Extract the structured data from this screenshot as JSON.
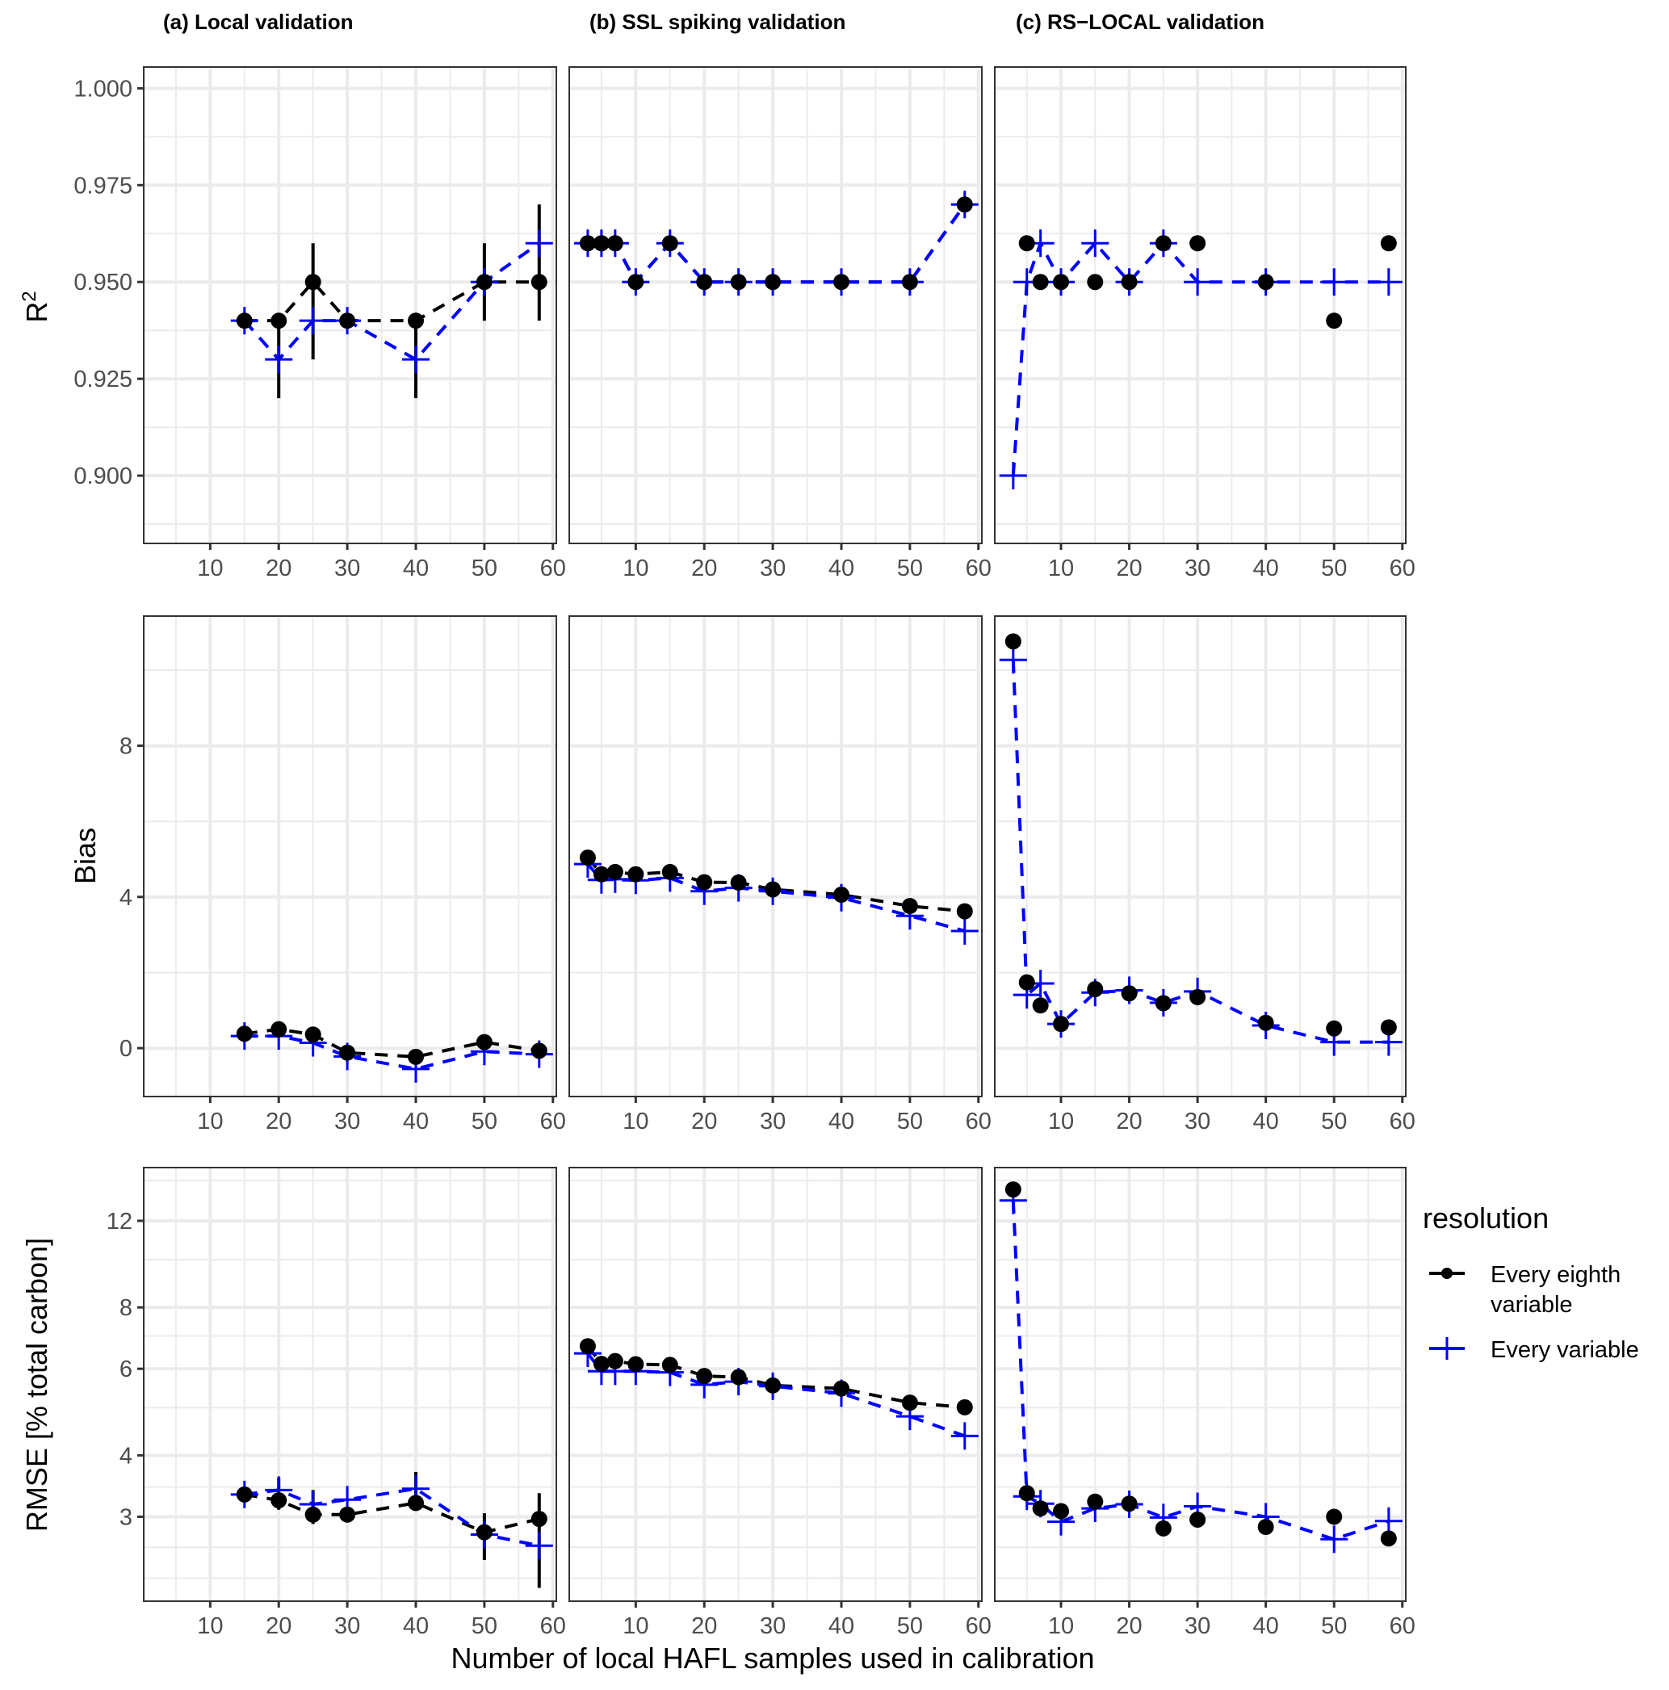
{
  "chart_data": {
    "type": "line",
    "facet_titles": [
      "(a) Local validation",
      "(b) SSL spiking validation",
      "(c) RS−LOCAL validation"
    ],
    "xlabel": "Number of local HAFL samples used in calibration",
    "x_ticks": [
      10,
      20,
      30,
      40,
      50,
      60
    ],
    "xlim": [
      0.3,
      60.5
    ],
    "legend": {
      "title": "resolution",
      "position": "right",
      "entries": [
        {
          "label_lines": [
            "Every eighth",
            "variable"
          ],
          "color": "#000000",
          "shape": "circle",
          "linetype": "dashed"
        },
        {
          "label_lines": [
            "Every variable"
          ],
          "color": "#0000ff",
          "shape": "plus",
          "linetype": "dashed"
        }
      ]
    },
    "rows": [
      {
        "metric": "R2",
        "ylabel": "R",
        "ylabel_superscript": "2",
        "scale": "linear",
        "ylim": [
          0.8825,
          1.0055
        ],
        "y_ticks": [
          0.9,
          0.925,
          0.95,
          0.975,
          1.0
        ],
        "y_tick_labels": [
          "0.900",
          "0.925",
          "0.950",
          "0.975",
          "1.000"
        ],
        "panels": [
          {
            "series": [
              {
                "name": "Every eighth variable",
                "x": [
                  15,
                  20,
                  25,
                  30,
                  40,
                  50,
                  58
                ],
                "y": [
                  0.94,
                  0.94,
                  0.95,
                  0.94,
                  0.94,
                  0.95,
                  0.95
                ],
                "err_low": [
                  0.94,
                  0.92,
                  0.93,
                  0.94,
                  0.92,
                  0.94,
                  0.94
                ],
                "err_high": [
                  0.94,
                  0.94,
                  0.96,
                  0.94,
                  0.94,
                  0.96,
                  0.97
                ]
              },
              {
                "name": "Every variable",
                "x": [
                  15,
                  20,
                  25,
                  30,
                  40,
                  50,
                  58
                ],
                "y": [
                  0.94,
                  0.93,
                  0.94,
                  0.94,
                  0.93,
                  0.95,
                  0.96
                ]
              }
            ]
          },
          {
            "series": [
              {
                "name": "Every eighth variable",
                "x": [
                  3,
                  5,
                  7,
                  10,
                  15,
                  20,
                  25,
                  30,
                  40,
                  50,
                  58
                ],
                "y": [
                  0.96,
                  0.96,
                  0.96,
                  0.95,
                  0.96,
                  0.95,
                  0.95,
                  0.95,
                  0.95,
                  0.95,
                  0.97
                ]
              },
              {
                "name": "Every variable",
                "x": [
                  3,
                  5,
                  7,
                  10,
                  15,
                  20,
                  25,
                  30,
                  40,
                  50,
                  58
                ],
                "y": [
                  0.96,
                  0.96,
                  0.96,
                  0.95,
                  0.96,
                  0.95,
                  0.95,
                  0.95,
                  0.95,
                  0.95,
                  0.97
                ]
              }
            ]
          },
          {
            "series": [
              {
                "name": "Every eighth variable",
                "x": [
                  5,
                  7,
                  10,
                  15,
                  20,
                  25,
                  30,
                  40,
                  50,
                  58
                ],
                "y": [
                  0.96,
                  0.95,
                  0.95,
                  0.95,
                  0.95,
                  0.96,
                  0.96,
                  0.95,
                  0.94,
                  0.96
                ],
                "no_line": true
              },
              {
                "name": "Every variable",
                "x": [
                  3,
                  5,
                  7,
                  10,
                  15,
                  20,
                  25,
                  30,
                  40,
                  50,
                  58
                ],
                "y": [
                  0.9,
                  0.95,
                  0.96,
                  0.95,
                  0.96,
                  0.95,
                  0.96,
                  0.95,
                  0.95,
                  0.95,
                  0.95
                ]
              }
            ]
          }
        ]
      },
      {
        "metric": "Bias",
        "ylabel": "Bias",
        "scale": "linear",
        "ylim": [
          -1.28,
          11.43
        ],
        "y_ticks": [
          0,
          4,
          8
        ],
        "y_tick_labels": [
          "0",
          "4",
          "8"
        ],
        "panels": [
          {
            "series": [
              {
                "name": "Every eighth variable",
                "x": [
                  15,
                  20,
                  25,
                  30,
                  40,
                  50,
                  58
                ],
                "y": [
                  0.38,
                  0.5,
                  0.36,
                  -0.12,
                  -0.23,
                  0.16,
                  -0.07
                ]
              },
              {
                "name": "Every variable",
                "x": [
                  15,
                  20,
                  25,
                  30,
                  40,
                  50,
                  58
                ],
                "y": [
                  0.32,
                  0.32,
                  0.14,
                  -0.22,
                  -0.55,
                  -0.09,
                  -0.16
                ]
              }
            ]
          },
          {
            "series": [
              {
                "name": "Every eighth variable",
                "x": [
                  3,
                  5,
                  7,
                  10,
                  15,
                  20,
                  25,
                  30,
                  40,
                  50,
                  58
                ],
                "y": [
                  5.04,
                  4.6,
                  4.66,
                  4.6,
                  4.66,
                  4.39,
                  4.38,
                  4.2,
                  4.06,
                  3.76,
                  3.62
                ]
              },
              {
                "name": "Every variable",
                "x": [
                  3,
                  5,
                  7,
                  10,
                  15,
                  20,
                  25,
                  30,
                  40,
                  50,
                  58
                ],
                "y": [
                  4.87,
                  4.45,
                  4.47,
                  4.44,
                  4.5,
                  4.15,
                  4.24,
                  4.15,
                  3.98,
                  3.5,
                  3.1
                ]
              }
            ]
          },
          {
            "series": [
              {
                "name": "Every eighth variable",
                "x": [
                  3,
                  5,
                  7,
                  10,
                  15,
                  20,
                  25,
                  30,
                  40,
                  50,
                  58
                ],
                "y": [
                  10.76,
                  1.74,
                  1.13,
                  0.64,
                  1.56,
                  1.45,
                  1.19,
                  1.35,
                  0.67,
                  0.52,
                  0.55
                ],
                "no_line": true
              },
              {
                "name": "Every variable",
                "x": [
                  3,
                  5,
                  7,
                  10,
                  15,
                  20,
                  25,
                  30,
                  40,
                  50,
                  58
                ],
                "y": [
                  10.27,
                  1.41,
                  1.71,
                  0.64,
                  1.47,
                  1.53,
                  1.2,
                  1.5,
                  0.6,
                  0.16,
                  0.16
                ]
              }
            ]
          }
        ]
      },
      {
        "metric": "RMSE",
        "ylabel": "RMSE [% total carbon]",
        "scale": "log",
        "ylim": [
          2.02,
          15.4
        ],
        "y_ticks": [
          3,
          4,
          6,
          8,
          12
        ],
        "y_tick_labels": [
          "3",
          "4",
          "6",
          "8",
          "12"
        ],
        "y_minor": [
          2.25,
          2.6,
          3.45,
          5,
          7,
          10,
          14.5
        ],
        "panels": [
          {
            "series": [
              {
                "name": "Every eighth variable",
                "x": [
                  15,
                  20,
                  25,
                  30,
                  40,
                  50,
                  58
                ],
                "y": [
                  3.33,
                  3.24,
                  3.03,
                  3.03,
                  3.2,
                  2.79,
                  2.97
                ],
                "err_low": [
                  3.25,
                  3.1,
                  2.9,
                  3.0,
                  3.15,
                  2.45,
                  2.15
                ],
                "err_high": [
                  3.4,
                  3.6,
                  3.4,
                  3.05,
                  3.7,
                  3.05,
                  3.35
                ]
              },
              {
                "name": "Every variable",
                "x": [
                  15,
                  20,
                  25,
                  30,
                  40,
                  50,
                  58
                ],
                "y": [
                  3.33,
                  3.4,
                  3.18,
                  3.25,
                  3.42,
                  2.76,
                  2.62
                ]
              }
            ]
          },
          {
            "series": [
              {
                "name": "Every eighth variable",
                "x": [
                  3,
                  5,
                  7,
                  10,
                  15,
                  20,
                  25,
                  30,
                  40,
                  50,
                  58
                ],
                "y": [
                  6.67,
                  6.14,
                  6.22,
                  6.13,
                  6.11,
                  5.8,
                  5.77,
                  5.55,
                  5.47,
                  5.12,
                  5.01
                ]
              },
              {
                "name": "Every variable",
                "x": [
                  3,
                  5,
                  7,
                  10,
                  15,
                  20,
                  25,
                  30,
                  40,
                  50,
                  58
                ],
                "y": [
                  6.45,
                  5.93,
                  5.93,
                  5.93,
                  5.9,
                  5.57,
                  5.65,
                  5.53,
                  5.35,
                  4.8,
                  4.38
                ]
              }
            ]
          },
          {
            "series": [
              {
                "name": "Every eighth variable",
                "x": [
                  3,
                  5,
                  7,
                  10,
                  15,
                  20,
                  25,
                  30,
                  40,
                  50,
                  58
                ],
                "y": [
                  13.9,
                  3.35,
                  3.12,
                  3.08,
                  3.22,
                  3.19,
                  2.84,
                  2.96,
                  2.86,
                  3.0,
                  2.71
                ],
                "no_line": true
              },
              {
                "name": "Every variable",
                "x": [
                  3,
                  5,
                  7,
                  10,
                  15,
                  20,
                  25,
                  30,
                  40,
                  50,
                  58
                ],
                "y": [
                  13.2,
                  3.3,
                  3.19,
                  2.93,
                  3.12,
                  3.18,
                  2.99,
                  3.15,
                  3.0,
                  2.7,
                  2.94
                ]
              }
            ]
          }
        ]
      }
    ]
  }
}
